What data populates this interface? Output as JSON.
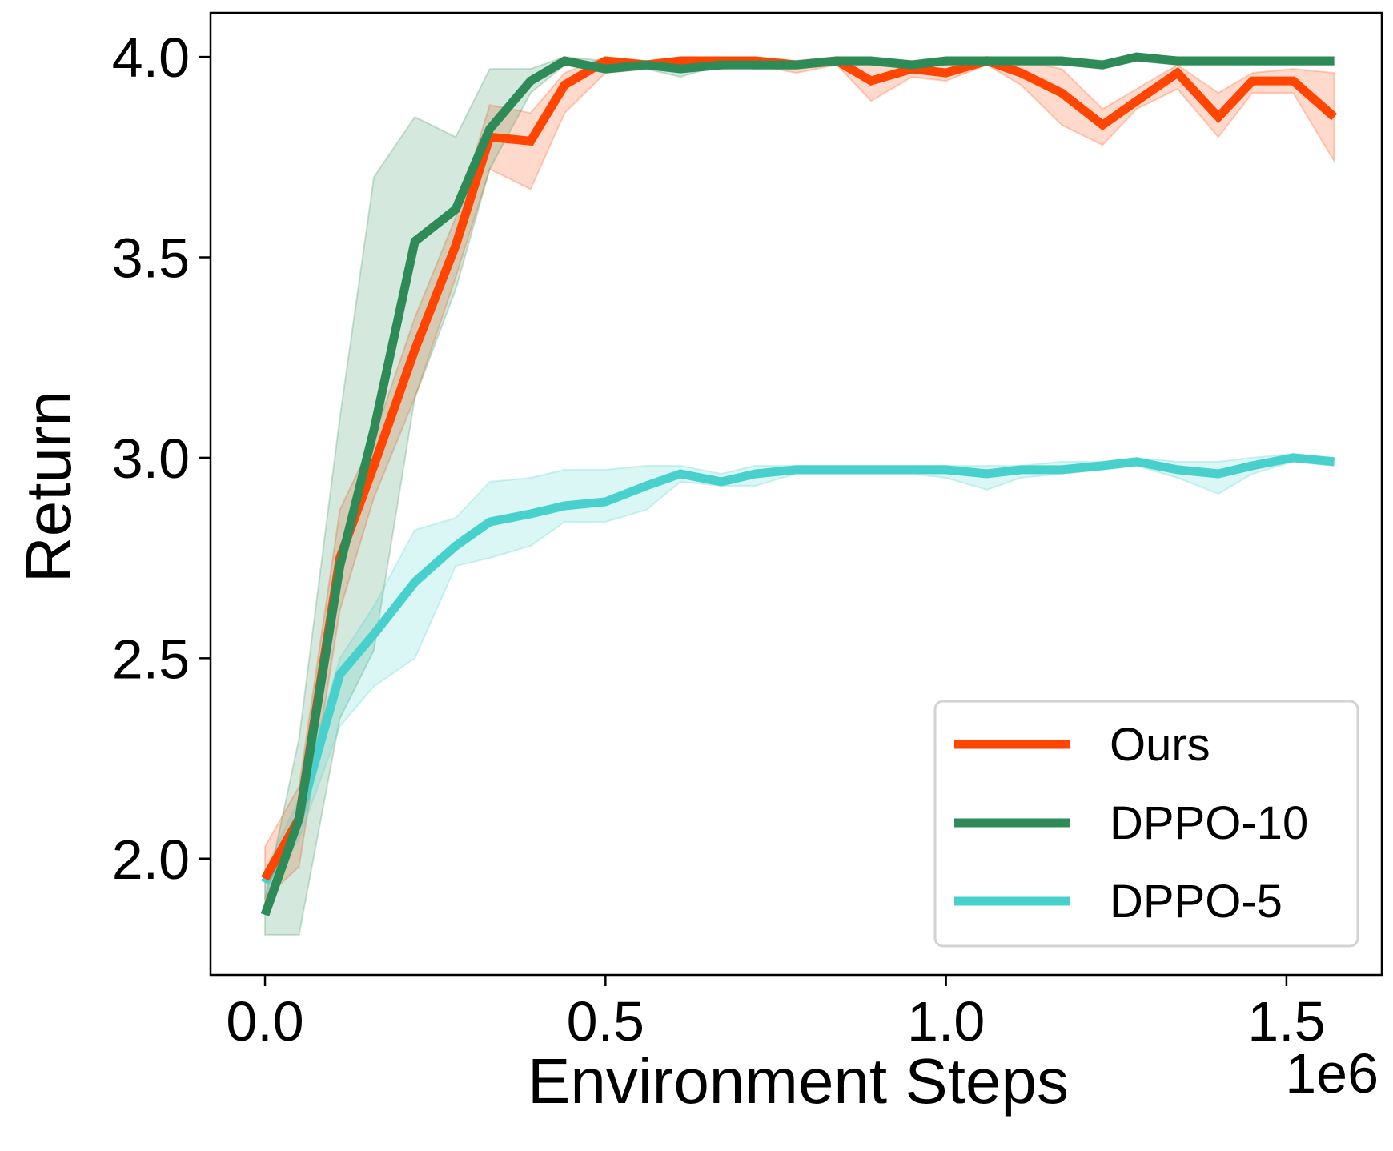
{
  "chart_data": {
    "type": "line",
    "title": "",
    "xlabel": "Environment Steps",
    "ylabel": "Return",
    "x_offset_label": "1e6",
    "xlim": [
      -0.08,
      1.64
    ],
    "ylim": [
      1.71,
      4.11
    ],
    "xticks": [
      0.0,
      0.5,
      1.0,
      1.5
    ],
    "xtick_labels": [
      "0.0",
      "0.5",
      "1.0",
      "1.5"
    ],
    "yticks": [
      2.0,
      2.5,
      3.0,
      3.5,
      4.0
    ],
    "ytick_labels": [
      "2.0",
      "2.5",
      "3.0",
      "3.5",
      "4.0"
    ],
    "grid": false,
    "legend_position": "lower-right",
    "x": [
      0.0,
      0.05,
      0.11,
      0.16,
      0.22,
      0.28,
      0.33,
      0.39,
      0.44,
      0.5,
      0.56,
      0.61,
      0.67,
      0.72,
      0.78,
      0.84,
      0.89,
      0.95,
      1.0,
      1.06,
      1.11,
      1.17,
      1.23,
      1.28,
      1.34,
      1.4,
      1.45,
      1.51,
      1.57
    ],
    "series": [
      {
        "name": "Ours",
        "color": "#FF4500",
        "values": [
          1.95,
          2.1,
          2.75,
          2.98,
          3.27,
          3.53,
          3.8,
          3.79,
          3.93,
          3.99,
          3.98,
          3.99,
          3.99,
          3.99,
          3.98,
          3.99,
          3.94,
          3.97,
          3.96,
          3.99,
          3.96,
          3.91,
          3.83,
          3.89,
          3.96,
          3.85,
          3.94,
          3.94,
          3.85
        ],
        "lower": [
          1.9,
          1.98,
          2.62,
          2.9,
          3.15,
          3.45,
          3.72,
          3.67,
          3.86,
          3.96,
          3.97,
          3.97,
          3.97,
          3.98,
          3.96,
          3.98,
          3.89,
          3.95,
          3.94,
          3.98,
          3.93,
          3.83,
          3.78,
          3.87,
          3.92,
          3.8,
          3.91,
          3.91,
          3.74
        ],
        "upper": [
          2.03,
          2.18,
          2.87,
          3.05,
          3.35,
          3.6,
          3.88,
          3.86,
          3.96,
          4.0,
          3.99,
          4.0,
          4.0,
          4.0,
          3.99,
          4.0,
          3.98,
          3.99,
          3.98,
          4.0,
          3.99,
          3.97,
          3.87,
          3.92,
          3.98,
          3.91,
          3.96,
          3.97,
          3.96
        ]
      },
      {
        "name": "DPPO-10",
        "color": "#2E8B57",
        "values": [
          1.86,
          2.1,
          2.73,
          3.07,
          3.54,
          3.62,
          3.82,
          3.94,
          3.99,
          3.97,
          3.98,
          3.97,
          3.98,
          3.98,
          3.98,
          3.99,
          3.99,
          3.98,
          3.99,
          3.99,
          3.99,
          3.99,
          3.98,
          4.0,
          3.99,
          3.99,
          3.99,
          3.99,
          3.99
        ],
        "lower": [
          1.81,
          1.81,
          2.35,
          2.52,
          3.15,
          3.42,
          3.72,
          3.91,
          3.98,
          3.96,
          3.97,
          3.95,
          3.98,
          3.97,
          3.97,
          3.98,
          3.98,
          3.97,
          3.98,
          3.98,
          3.98,
          3.98,
          3.97,
          3.99,
          3.98,
          3.98,
          3.98,
          3.98,
          3.98
        ],
        "upper": [
          1.9,
          2.3,
          3.1,
          3.7,
          3.85,
          3.8,
          3.97,
          3.97,
          4.0,
          3.99,
          3.99,
          3.99,
          3.99,
          3.99,
          3.99,
          4.0,
          4.0,
          3.99,
          4.0,
          4.0,
          4.0,
          4.0,
          3.99,
          4.0,
          4.0,
          4.0,
          4.0,
          4.0,
          4.0
        ]
      },
      {
        "name": "DPPO-5",
        "color": "#48D1CC",
        "values": [
          1.94,
          2.1,
          2.46,
          2.56,
          2.69,
          2.78,
          2.84,
          2.86,
          2.88,
          2.89,
          2.93,
          2.96,
          2.94,
          2.96,
          2.97,
          2.97,
          2.97,
          2.97,
          2.97,
          2.96,
          2.97,
          2.97,
          2.98,
          2.99,
          2.97,
          2.96,
          2.98,
          3.0,
          2.99
        ],
        "lower": [
          1.91,
          2.05,
          2.33,
          2.43,
          2.5,
          2.73,
          2.75,
          2.78,
          2.84,
          2.84,
          2.87,
          2.94,
          2.93,
          2.93,
          2.96,
          2.96,
          2.96,
          2.96,
          2.95,
          2.92,
          2.95,
          2.96,
          2.97,
          2.98,
          2.95,
          2.91,
          2.96,
          2.99,
          2.98
        ],
        "upper": [
          1.97,
          2.15,
          2.5,
          2.63,
          2.82,
          2.85,
          2.94,
          2.95,
          2.97,
          2.97,
          2.98,
          2.98,
          2.96,
          2.98,
          2.98,
          2.98,
          2.98,
          2.98,
          2.98,
          2.98,
          2.98,
          2.99,
          2.99,
          3.0,
          2.99,
          2.99,
          3.0,
          3.01,
          3.0
        ]
      }
    ]
  }
}
